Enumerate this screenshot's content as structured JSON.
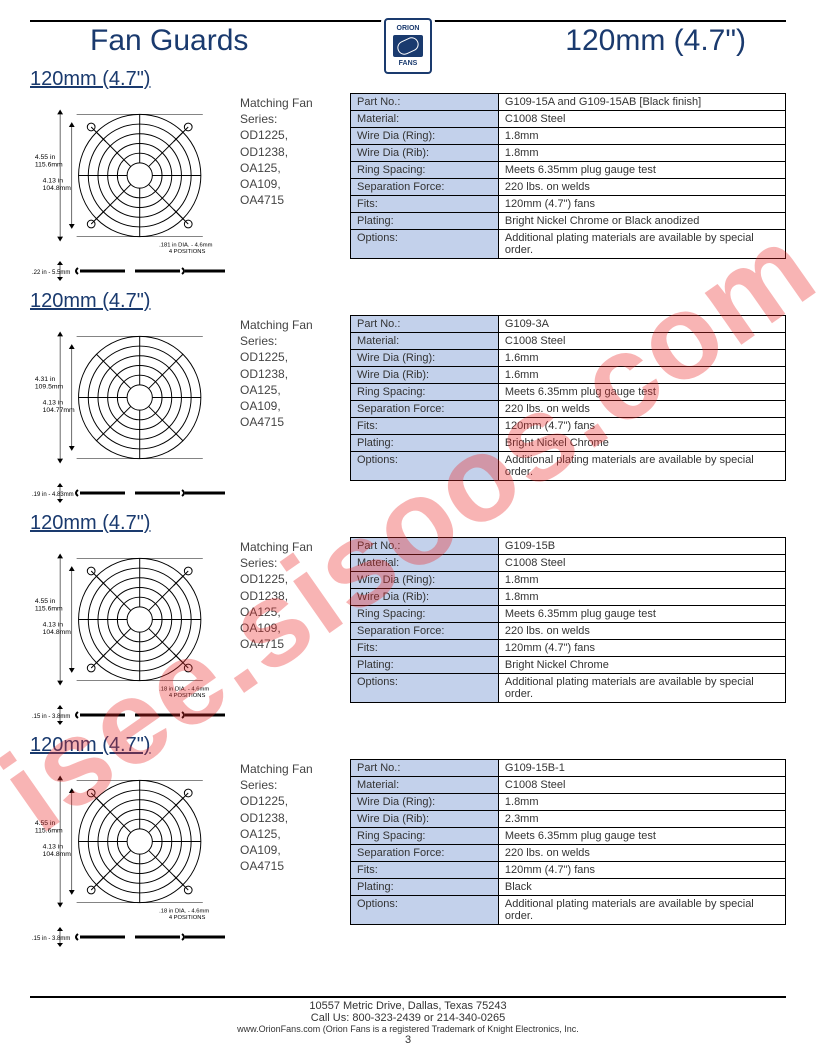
{
  "header": {
    "left_title": "Fan Guards",
    "right_title": "120mm (4.7\")",
    "logo_top": "ORION",
    "logo_bottom": "FANS"
  },
  "watermark": "isee.sisoos.com",
  "footer": {
    "address": "10557 Metric Drive, Dallas, Texas 75243",
    "phone": "Call Us: 800-323-2439 or 214-340-0265",
    "trademark": "www.OrionFans.com (Orion Fans is a registered Trademark of Knight Electronics, Inc.",
    "page": "3"
  },
  "series_heading": "Matching Fan Series:",
  "series_list": "OD1225,\nOD1238,\nOA125,\nOA109,\nOA4715",
  "spec_labels": {
    "part_no": "Part No.:",
    "material": "Material:",
    "wire_ring": "Wire Dia (Ring):",
    "wire_rib": "Wire Dia (Rib):",
    "ring_spacing": "Ring Spacing:",
    "sep_force": "Separation Force:",
    "fits": "Fits:",
    "plating": "Plating:",
    "options": "Options:"
  },
  "products": [
    {
      "title": "120mm (4.7\")",
      "diagram": {
        "dim_outer_in": "4.55 in",
        "dim_outer_mm": "115.6mm",
        "dim_inner_in": "4.13 in",
        "dim_inner_mm": "104.8mm",
        "hole_note": ".181 in DIA. - 4.6mm\n4 POSITIONS",
        "profile_note": ".22 in - 5.5mm"
      },
      "specs": {
        "part_no": "G109-15A and G109-15AB [Black finish]",
        "material": "C1008 Steel",
        "wire_ring": "1.8mm",
        "wire_rib": "1.8mm",
        "ring_spacing": "Meets 6.35mm plug gauge test",
        "sep_force": "220 lbs. on welds",
        "fits": "120mm (4.7\") fans",
        "plating": "Bright Nickel Chrome or Black anodized",
        "options": "Additional plating materials are available by special order."
      }
    },
    {
      "title": "120mm (4.7\")",
      "diagram": {
        "dim_outer_in": "4.31 in",
        "dim_outer_mm": "109.5mm",
        "dim_inner_in": "4.13 in",
        "dim_inner_mm": "104.77mm",
        "hole_note": "",
        "profile_note": ".19 in - 4.83mm"
      },
      "specs": {
        "part_no": "G109-3A",
        "material": "C1008 Steel",
        "wire_ring": "1.6mm",
        "wire_rib": "1.6mm",
        "ring_spacing": "Meets 6.35mm plug gauge test",
        "sep_force": "220 lbs. on welds",
        "fits": "120mm (4.7\") fans",
        "plating": "Bright Nickel Chrome",
        "options": "Additional plating materials are available by special order."
      }
    },
    {
      "title": "120mm (4.7\")",
      "diagram": {
        "dim_outer_in": "4.55 in",
        "dim_outer_mm": "115.6mm",
        "dim_inner_in": "4.13 in",
        "dim_inner_mm": "104.8mm",
        "hole_note": ".18 in DIA. - 4.6mm\n4 POSITIONS",
        "profile_note": ".15 in - 3.8mm"
      },
      "specs": {
        "part_no": "G109-15B",
        "material": "C1008 Steel",
        "wire_ring": "1.8mm",
        "wire_rib": "1.8mm",
        "ring_spacing": "Meets 6.35mm plug gauge test",
        "sep_force": "220 lbs. on welds",
        "fits": "120mm (4.7\") fans",
        "plating": "Bright Nickel Chrome",
        "options": "Additional plating materials are available by special order."
      }
    },
    {
      "title": "120mm (4.7\")",
      "diagram": {
        "dim_outer_in": "4.55 in",
        "dim_outer_mm": "115.6mm",
        "dim_inner_in": "4.13 in",
        "dim_inner_mm": "104.8mm",
        "hole_note": ".18 in DIA. - 4.6mm\n4 POSITIONS",
        "profile_note": ".15 in - 3.8mm"
      },
      "specs": {
        "part_no": "G109-15B-1",
        "material": "C1008 Steel",
        "wire_ring": "1.8mm",
        "wire_rib": "2.3mm",
        "ring_spacing": "Meets 6.35mm plug gauge test",
        "sep_force": "220 lbs. on welds",
        "fits": "120mm (4.7\") fans",
        "plating": "Black",
        "options": "Additional plating materials are available by special order."
      }
    }
  ]
}
